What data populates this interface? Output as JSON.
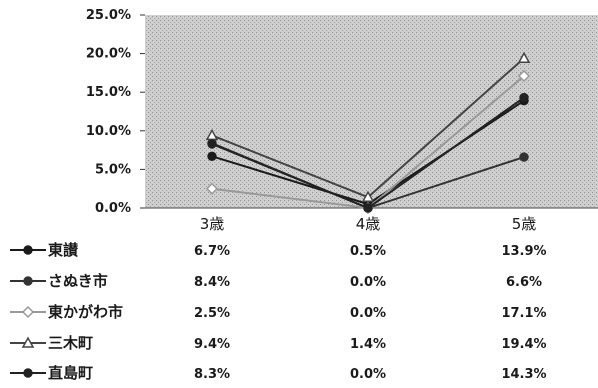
{
  "chart_data": {
    "type": "line",
    "categories": [
      "3歳",
      "4歳",
      "5歳"
    ],
    "ylim": [
      0,
      25
    ],
    "yticks": [
      "0.0%",
      "5.0%",
      "10.0%",
      "15.0%",
      "20.0%",
      "25.0%"
    ],
    "series": [
      {
        "name": "東讃",
        "values": [
          6.7,
          0.5,
          13.9
        ],
        "labels": [
          "6.7%",
          "0.5%",
          "13.9%"
        ],
        "color": "#1a1a1a",
        "marker": "dot"
      },
      {
        "name": "さぬき市",
        "values": [
          8.4,
          0.0,
          6.6
        ],
        "labels": [
          "8.4%",
          "0.0%",
          "6.6%"
        ],
        "color": "#333333",
        "marker": "dot"
      },
      {
        "name": "東かがわ市",
        "values": [
          2.5,
          0.0,
          17.1
        ],
        "labels": [
          "2.5%",
          "0.0%",
          "17.1%"
        ],
        "color": "#999999",
        "marker": "diamond"
      },
      {
        "name": "三木町",
        "values": [
          9.4,
          1.4,
          19.4
        ],
        "labels": [
          "9.4%",
          "1.4%",
          "19.4%"
        ],
        "color": "#444444",
        "marker": "triangle"
      },
      {
        "name": "直島町",
        "values": [
          8.3,
          0.0,
          14.3
        ],
        "labels": [
          "8.3%",
          "0.0%",
          "14.3%"
        ],
        "color": "#222222",
        "marker": "dot"
      }
    ],
    "grid": false,
    "legend": "table-left"
  }
}
